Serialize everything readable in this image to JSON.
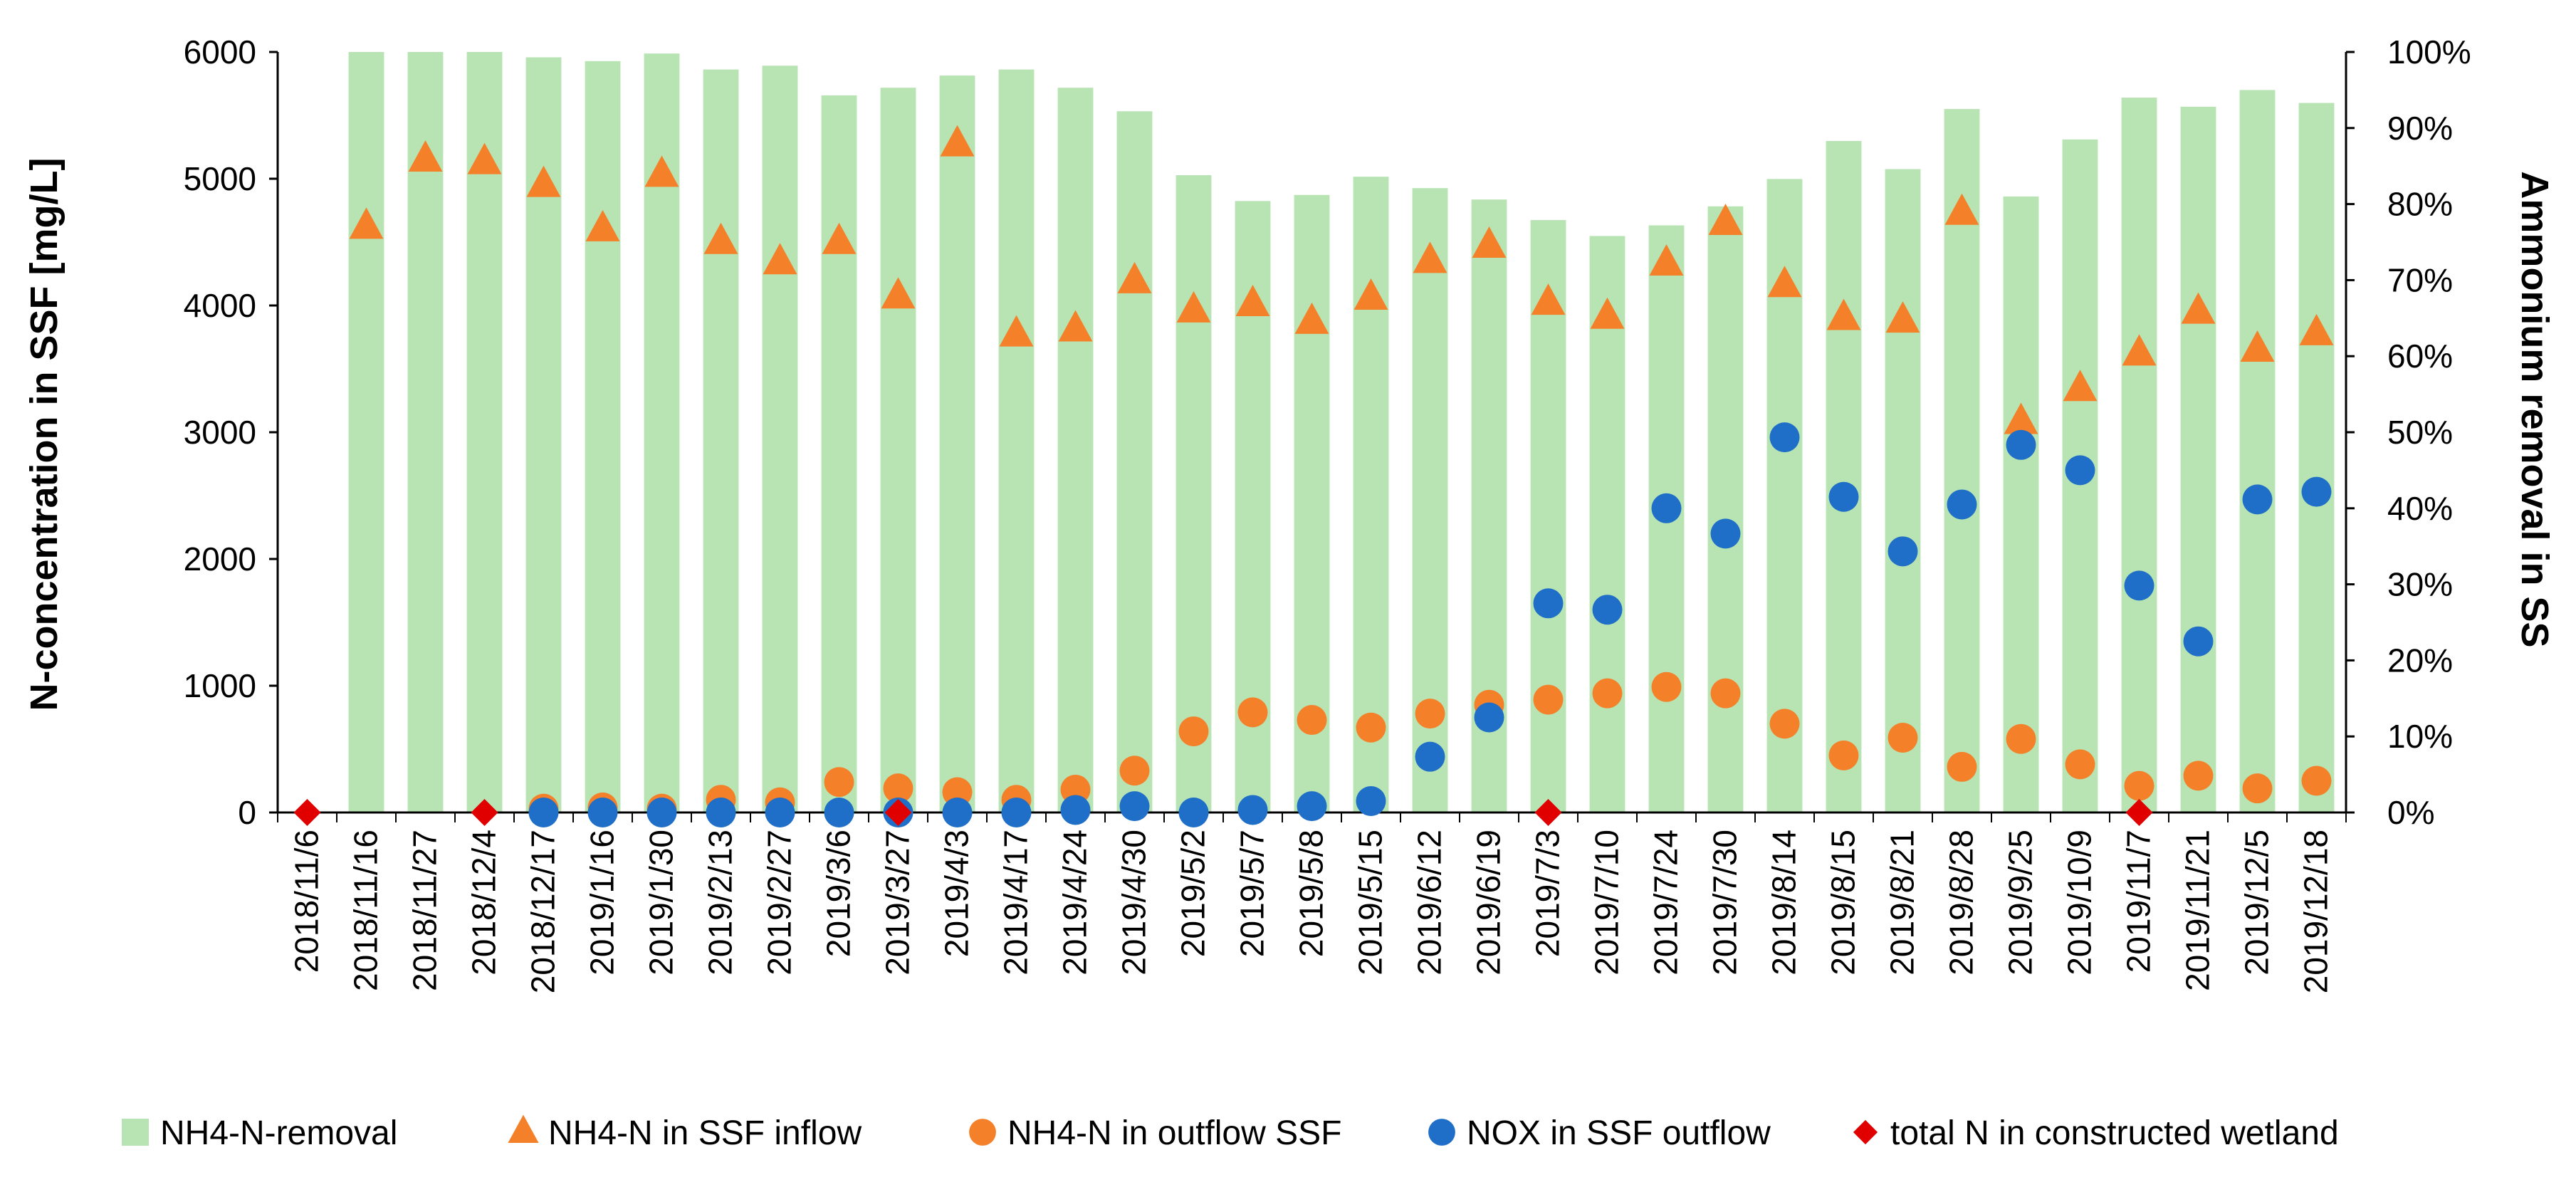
{
  "chart_data": {
    "type": "bar",
    "title": "",
    "xlabel": "",
    "ylabel": "N-concentration in SSF [mg/L]",
    "y2label": "Ammonium removal in SS",
    "ylim": [
      0,
      6000
    ],
    "y2lim": [
      0,
      100
    ],
    "yticks": [
      "0",
      "1000",
      "2000",
      "3000",
      "4000",
      "5000",
      "6000"
    ],
    "y2ticks": [
      "0%",
      "10%",
      "20%",
      "30%",
      "40%",
      "50%",
      "60%",
      "70%",
      "80%",
      "90%",
      "100%"
    ],
    "grid": false,
    "legend_position": "bottom",
    "categories": [
      "2018/11/6",
      "2018/11/16",
      "2018/11/27",
      "2018/12/4",
      "2018/12/17",
      "2019/1/16",
      "2019/1/30",
      "2019/2/13",
      "2019/2/27",
      "2019/3/6",
      "2019/3/27",
      "2019/4/3",
      "2019/4/17",
      "2019/4/24",
      "2019/4/30",
      "2019/5/2",
      "2019/5/7",
      "2019/5/8",
      "2019/5/15",
      "2019/6/12",
      "2019/6/19",
      "2019/7/3",
      "2019/7/10",
      "2019/7/24",
      "2019/7/30",
      "2019/8/14",
      "2019/8/15",
      "2019/8/21",
      "2019/8/28",
      "2019/9/25",
      "2019/10/9",
      "2019/11/7",
      "2019/11/21",
      "2019/12/5",
      "2019/12/18"
    ],
    "series": [
      {
        "name": "NH4-N-removal",
        "kind": "bar",
        "axis": "right",
        "color": "#b8e4b4",
        "values": [
          null,
          100,
          100,
          100,
          99.3,
          98.8,
          99.8,
          97.7,
          98.2,
          94.3,
          95.3,
          96.9,
          97.7,
          95.3,
          92.2,
          83.8,
          80.4,
          81.2,
          83.6,
          82.1,
          80.6,
          77.9,
          75.8,
          77.2,
          79.7,
          83.3,
          88.3,
          84.6,
          92.5,
          81,
          88.5,
          94,
          92.8,
          95,
          93.3
        ]
      },
      {
        "name": "NH4-N in SSF inflow",
        "kind": "triangle",
        "axis": "left",
        "color": "#f4812a",
        "values": [
          null,
          4620,
          5150,
          5130,
          4950,
          4600,
          5030,
          4500,
          4340,
          4500,
          4070,
          5270,
          3770,
          3810,
          4190,
          3960,
          4010,
          3870,
          4060,
          4350,
          4470,
          4020,
          3910,
          4330,
          4650,
          4160,
          3900,
          3880,
          4730,
          3080,
          3340,
          3620,
          3950,
          3650,
          3780
        ]
      },
      {
        "name": "NH4-N in outflow SSF",
        "kind": "circle",
        "axis": "left",
        "color": "#f4812a",
        "values": [
          null,
          null,
          null,
          null,
          30,
          40,
          30,
          100,
          80,
          240,
          190,
          160,
          100,
          180,
          330,
          640,
          790,
          730,
          670,
          780,
          850,
          890,
          940,
          990,
          940,
          700,
          450,
          590,
          360,
          580,
          380,
          210,
          290,
          190,
          250
        ]
      },
      {
        "name": "NOX in SSF outflow",
        "kind": "circle",
        "axis": "left",
        "color": "#1f6ec8",
        "values": [
          null,
          null,
          null,
          null,
          0,
          0,
          0,
          0,
          0,
          0,
          0,
          0,
          0,
          20,
          50,
          0,
          20,
          50,
          90,
          440,
          750,
          1650,
          1600,
          2400,
          2200,
          2960,
          2490,
          2060,
          2430,
          2900,
          2700,
          1790,
          1350,
          2470,
          2530
        ]
      },
      {
        "name": "total N in constructed wetland",
        "kind": "diamond",
        "axis": "left",
        "color": "#e00000",
        "values": [
          0,
          null,
          null,
          0,
          null,
          null,
          null,
          null,
          null,
          null,
          0,
          null,
          null,
          null,
          null,
          null,
          null,
          null,
          null,
          null,
          null,
          0,
          null,
          null,
          null,
          null,
          null,
          null,
          null,
          null,
          null,
          0,
          null,
          null,
          null
        ]
      }
    ]
  }
}
